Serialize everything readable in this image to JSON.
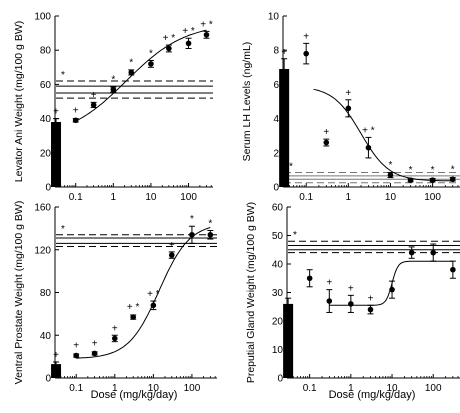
{
  "figure": {
    "xlabel": "Dose (mg/kg/day)"
  },
  "chart_data": [
    {
      "type": "scatter",
      "ylabel": "Levator Ani Weight (mg/100 g BW)",
      "ylim": [
        0,
        100
      ],
      "yticks": [
        "0",
        "20",
        "40",
        "60",
        "80",
        "100"
      ],
      "xscale": "log",
      "xticks": [
        "0.1",
        "1",
        "10",
        "100"
      ],
      "control_bar": {
        "value": 38,
        "err": 2,
        "mark": "+"
      },
      "ref_lines": [
        {
          "y": 62,
          "style": "dashed"
        },
        {
          "y": 59,
          "style": "solid"
        },
        {
          "y": 55,
          "style": "solid"
        },
        {
          "y": 52,
          "style": "dashed"
        }
      ],
      "ref_mark": "*",
      "points": [
        {
          "x": 0.1,
          "y": 39,
          "err": 1,
          "mark": "+"
        },
        {
          "x": 0.3,
          "y": 48,
          "err": 1.5,
          "mark": "+"
        },
        {
          "x": 1,
          "y": 57,
          "err": 1.5,
          "mark": "*"
        },
        {
          "x": 3,
          "y": 67,
          "err": 1.5,
          "mark": "*"
        },
        {
          "x": 10,
          "y": 72,
          "err": 2,
          "mark": "*"
        },
        {
          "x": 30,
          "y": 81,
          "err": 2,
          "mark": "+ *"
        },
        {
          "x": 100,
          "y": 84,
          "err": 3,
          "mark": "+ *"
        },
        {
          "x": 300,
          "y": 89,
          "err": 2,
          "mark": "+ *"
        }
      ],
      "curve": {
        "bottom": 28,
        "top": 96,
        "ec50": 2.2,
        "hill": 0.55,
        "from": 0.1,
        "to": 300
      }
    },
    {
      "type": "scatter",
      "ylabel": "Serum LH Levels (ng/mL)",
      "ylim": [
        0,
        10
      ],
      "yticks": [
        "0",
        "2",
        "4",
        "6",
        "8",
        "10"
      ],
      "xscale": "log",
      "xticks": [
        "0.1",
        "1",
        "10",
        "100"
      ],
      "control_bar": {
        "value": 6.9,
        "err": 0.6,
        "mark": "+"
      },
      "ref_lines": [
        {
          "y": 0.85,
          "style": "dashed"
        },
        {
          "y": 0.65,
          "style": "solid"
        },
        {
          "y": 0.45,
          "style": "solid"
        },
        {
          "y": 0.25,
          "style": "dashed"
        }
      ],
      "ref_mark": "*",
      "points": [
        {
          "x": 0.1,
          "y": 7.8,
          "err": 0.6,
          "mark": "+"
        },
        {
          "x": 0.3,
          "y": 2.6,
          "err": 0.2,
          "mark": "+"
        },
        {
          "x": 1,
          "y": 4.6,
          "err": 0.5,
          "mark": "+"
        },
        {
          "x": 3,
          "y": 2.3,
          "err": 0.6,
          "mark": "+ *"
        },
        {
          "x": 10,
          "y": 0.7,
          "err": 0.15,
          "mark": "*"
        },
        {
          "x": 30,
          "y": 0.4,
          "err": 0.1,
          "mark": "*"
        },
        {
          "x": 100,
          "y": 0.4,
          "err": 0.1,
          "mark": "*"
        },
        {
          "x": 300,
          "y": 0.45,
          "err": 0.1,
          "mark": "*"
        }
      ],
      "curve": {
        "bottom": 0.35,
        "top": 5.9,
        "ec50": 2.0,
        "hill": -1.3,
        "from": 0.15,
        "to": 300
      }
    },
    {
      "type": "scatter",
      "ylabel": "Ventral Prostate Weight (mg/100 g BW)",
      "ylim": [
        0,
        160
      ],
      "yticks": [
        "0",
        "40",
        "80",
        "120",
        "160"
      ],
      "xscale": "log",
      "xticks": [
        "0.1",
        "1",
        "10",
        "100"
      ],
      "control_bar": {
        "value": 13,
        "err": 2,
        "mark": "+"
      },
      "ref_lines": [
        {
          "y": 134,
          "style": "dashed"
        },
        {
          "y": 131,
          "style": "solid"
        },
        {
          "y": 126,
          "style": "solid"
        },
        {
          "y": 123,
          "style": "dashed"
        }
      ],
      "ref_mark": "*",
      "points": [
        {
          "x": 0.1,
          "y": 21,
          "err": 1.5,
          "mark": "+"
        },
        {
          "x": 0.3,
          "y": 23,
          "err": 1.5,
          "mark": "+"
        },
        {
          "x": 1,
          "y": 37,
          "err": 3,
          "mark": "+"
        },
        {
          "x": 3,
          "y": 57,
          "err": 2,
          "mark": "+ *"
        },
        {
          "x": 10,
          "y": 68,
          "err": 4,
          "mark": "+ *"
        },
        {
          "x": 30,
          "y": 115,
          "err": 3,
          "mark": "+"
        },
        {
          "x": 100,
          "y": 134,
          "err": 8,
          "mark": "*"
        },
        {
          "x": 300,
          "y": 134,
          "err": 4,
          "mark": "*"
        }
      ],
      "curve": {
        "bottom": 18,
        "top": 145,
        "ec50": 14,
        "hill": 1.1,
        "from": 0.1,
        "to": 300
      }
    },
    {
      "type": "scatter",
      "ylabel": "Preputial Gland Weight (mg/100 g BW)",
      "ylim": [
        0,
        60
      ],
      "yticks": [
        "0",
        "10",
        "20",
        "30",
        "40",
        "50",
        "60"
      ],
      "xscale": "log",
      "xticks": [
        "0.1",
        "1",
        "10",
        "100"
      ],
      "control_bar": {
        "value": 26,
        "err": 2,
        "mark": ""
      },
      "ref_lines": [
        {
          "y": 48,
          "style": "dashed"
        },
        {
          "y": 46.5,
          "style": "solid"
        },
        {
          "y": 45,
          "style": "solid"
        },
        {
          "y": 44,
          "style": "dashed"
        }
      ],
      "ref_mark": "*",
      "points": [
        {
          "x": 0.1,
          "y": 35,
          "err": 3,
          "mark": ""
        },
        {
          "x": 0.3,
          "y": 27,
          "err": 4,
          "mark": "+"
        },
        {
          "x": 1,
          "y": 26,
          "err": 3,
          "mark": "+"
        },
        {
          "x": 3,
          "y": 24,
          "err": 1.5,
          "mark": "+"
        },
        {
          "x": 10,
          "y": 31,
          "err": 3,
          "mark": ""
        },
        {
          "x": 30,
          "y": 44,
          "err": 2,
          "mark": ""
        },
        {
          "x": 100,
          "y": 44,
          "err": 3,
          "mark": ""
        },
        {
          "x": 300,
          "y": 38,
          "err": 3,
          "mark": ""
        }
      ],
      "curve": {
        "bottom": 25.5,
        "top": 41,
        "ec50": 10,
        "hill": 6,
        "from": 0.3,
        "to": 300
      }
    }
  ]
}
